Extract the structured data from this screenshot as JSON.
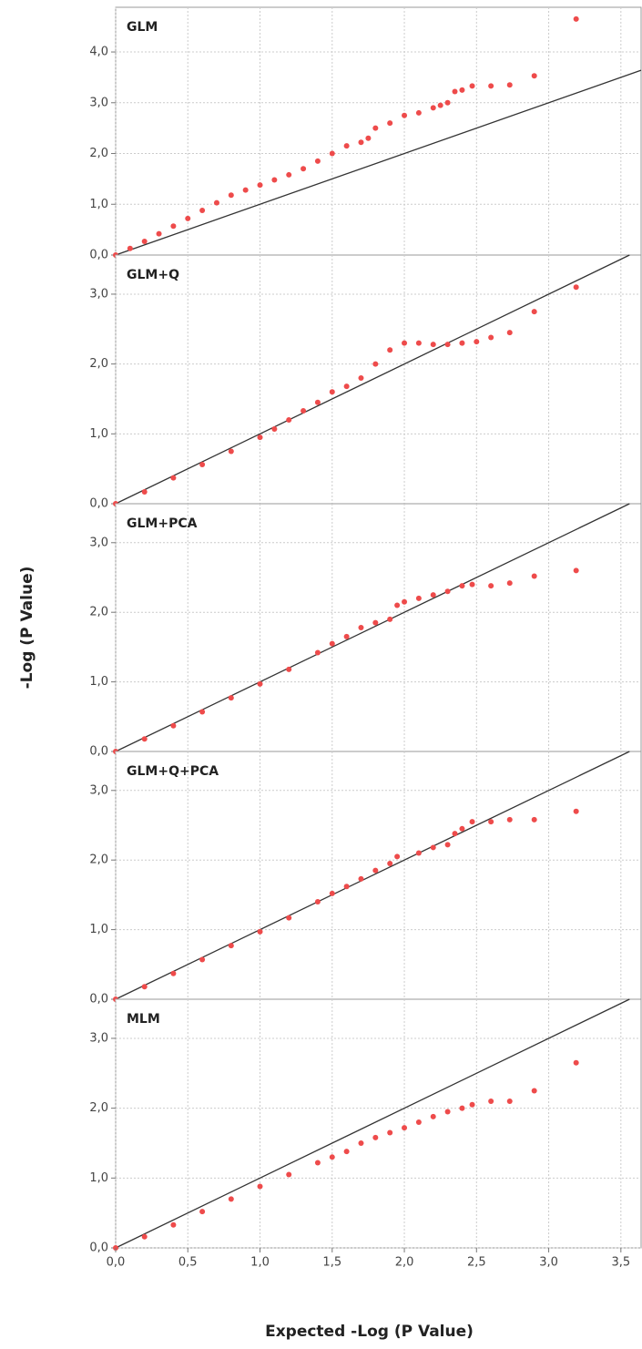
{
  "chart_data": [
    {
      "type": "scatter",
      "title": "GLM",
      "color": "#ee4b4b",
      "grid": true,
      "xlim": [
        0,
        3.64
      ],
      "ylim": [
        0,
        4.88
      ],
      "yticks": [
        {
          "value": 0,
          "label": "0,0"
        },
        {
          "value": 1,
          "label": "1,0"
        },
        {
          "value": 2,
          "label": "2,0"
        },
        {
          "value": 3,
          "label": "3,0"
        },
        {
          "value": 4,
          "label": "4,0"
        }
      ],
      "x": [
        0,
        0.1,
        0.2,
        0.3,
        0.4,
        0.5,
        0.6,
        0.7,
        0.8,
        0.9,
        1.0,
        1.1,
        1.2,
        1.3,
        1.4,
        1.5,
        1.6,
        1.7,
        1.75,
        1.8,
        1.9,
        2.0,
        2.1,
        2.2,
        2.25,
        2.3,
        2.35,
        2.4,
        2.47,
        2.6,
        2.73,
        2.9,
        3.19
      ],
      "values": [
        0,
        0.13,
        0.27,
        0.42,
        0.57,
        0.72,
        0.88,
        1.03,
        1.18,
        1.28,
        1.38,
        1.48,
        1.58,
        1.7,
        1.85,
        2.0,
        2.15,
        2.22,
        2.3,
        2.5,
        2.6,
        2.75,
        2.8,
        2.9,
        2.95,
        3.0,
        3.22,
        3.25,
        3.33,
        3.33,
        3.35,
        3.53,
        4.65
      ]
    },
    {
      "type": "scatter",
      "title": "GLM+Q",
      "color": "#ee4b4b",
      "grid": true,
      "xlim": [
        0,
        3.64
      ],
      "ylim": [
        0,
        3.56
      ],
      "yticks": [
        {
          "value": 0,
          "label": "0,0"
        },
        {
          "value": 1,
          "label": "1,0"
        },
        {
          "value": 2,
          "label": "2,0"
        },
        {
          "value": 3,
          "label": "3,0"
        }
      ],
      "x": [
        0,
        0.2,
        0.4,
        0.6,
        0.8,
        1.0,
        1.1,
        1.2,
        1.3,
        1.4,
        1.5,
        1.6,
        1.7,
        1.8,
        1.9,
        2.0,
        2.1,
        2.2,
        2.3,
        2.4,
        2.5,
        2.6,
        2.73,
        2.9,
        3.19
      ],
      "values": [
        0,
        0.17,
        0.37,
        0.56,
        0.75,
        0.95,
        1.07,
        1.2,
        1.33,
        1.45,
        1.6,
        1.68,
        1.8,
        2.0,
        2.2,
        2.3,
        2.3,
        2.28,
        2.28,
        2.3,
        2.32,
        2.38,
        2.45,
        2.75,
        3.1
      ]
    },
    {
      "type": "scatter",
      "title": "GLM+PCA",
      "color": "#ee4b4b",
      "grid": true,
      "ylabel": "-Log (P Value)",
      "xlim": [
        0,
        3.64
      ],
      "ylim": [
        0,
        3.56
      ],
      "yticks": [
        {
          "value": 0,
          "label": "0,0"
        },
        {
          "value": 1,
          "label": "1,0"
        },
        {
          "value": 2,
          "label": "2,0"
        },
        {
          "value": 3,
          "label": "3,0"
        }
      ],
      "x": [
        0,
        0.2,
        0.4,
        0.6,
        0.8,
        1.0,
        1.2,
        1.4,
        1.5,
        1.6,
        1.7,
        1.8,
        1.9,
        1.95,
        2.0,
        2.1,
        2.2,
        2.3,
        2.4,
        2.47,
        2.6,
        2.73,
        2.9,
        3.19
      ],
      "values": [
        0,
        0.18,
        0.37,
        0.57,
        0.77,
        0.97,
        1.18,
        1.42,
        1.55,
        1.65,
        1.78,
        1.85,
        1.9,
        2.1,
        2.15,
        2.2,
        2.25,
        2.3,
        2.38,
        2.4,
        2.38,
        2.42,
        2.52,
        2.6
      ]
    },
    {
      "type": "scatter",
      "title": "GLM+Q+PCA",
      "color": "#ee4b4b",
      "grid": true,
      "xlim": [
        0,
        3.64
      ],
      "ylim": [
        0,
        3.56
      ],
      "yticks": [
        {
          "value": 0,
          "label": "0,0"
        },
        {
          "value": 1,
          "label": "1,0"
        },
        {
          "value": 2,
          "label": "2,0"
        },
        {
          "value": 3,
          "label": "3,0"
        }
      ],
      "x": [
        0,
        0.2,
        0.4,
        0.6,
        0.8,
        1.0,
        1.2,
        1.4,
        1.5,
        1.6,
        1.7,
        1.8,
        1.9,
        1.95,
        2.1,
        2.2,
        2.3,
        2.35,
        2.4,
        2.47,
        2.6,
        2.73,
        2.9,
        3.19
      ],
      "values": [
        0,
        0.18,
        0.37,
        0.57,
        0.77,
        0.97,
        1.17,
        1.4,
        1.52,
        1.62,
        1.73,
        1.85,
        1.95,
        2.05,
        2.1,
        2.18,
        2.22,
        2.38,
        2.45,
        2.55,
        2.55,
        2.58,
        2.58,
        2.7
      ]
    },
    {
      "type": "scatter",
      "title": "MLM",
      "color": "#ee4b4b",
      "grid": true,
      "xlabel": "Expected -Log (P Value)",
      "xlim": [
        0,
        3.64
      ],
      "ylim": [
        0,
        3.56
      ],
      "xticks": [
        {
          "value": 0,
          "label": "0,0"
        },
        {
          "value": 0.5,
          "label": "0,5"
        },
        {
          "value": 1,
          "label": "1,0"
        },
        {
          "value": 1.5,
          "label": "1,5"
        },
        {
          "value": 2,
          "label": "2,0"
        },
        {
          "value": 2.5,
          "label": "2,5"
        },
        {
          "value": 3,
          "label": "3,0"
        },
        {
          "value": 3.5,
          "label": "3,5"
        }
      ],
      "yticks": [
        {
          "value": 0,
          "label": "0,0"
        },
        {
          "value": 1,
          "label": "1,0"
        },
        {
          "value": 2,
          "label": "2,0"
        },
        {
          "value": 3,
          "label": "3,0"
        }
      ],
      "x": [
        0,
        0.2,
        0.4,
        0.6,
        0.8,
        1.0,
        1.2,
        1.4,
        1.5,
        1.6,
        1.7,
        1.8,
        1.9,
        2.0,
        2.1,
        2.2,
        2.3,
        2.4,
        2.47,
        2.6,
        2.73,
        2.9,
        3.19
      ],
      "values": [
        0,
        0.16,
        0.33,
        0.52,
        0.7,
        0.88,
        1.05,
        1.22,
        1.3,
        1.38,
        1.5,
        1.58,
        1.65,
        1.72,
        1.8,
        1.88,
        1.95,
        2.0,
        2.05,
        2.1,
        2.1,
        2.25,
        2.65
      ]
    }
  ]
}
